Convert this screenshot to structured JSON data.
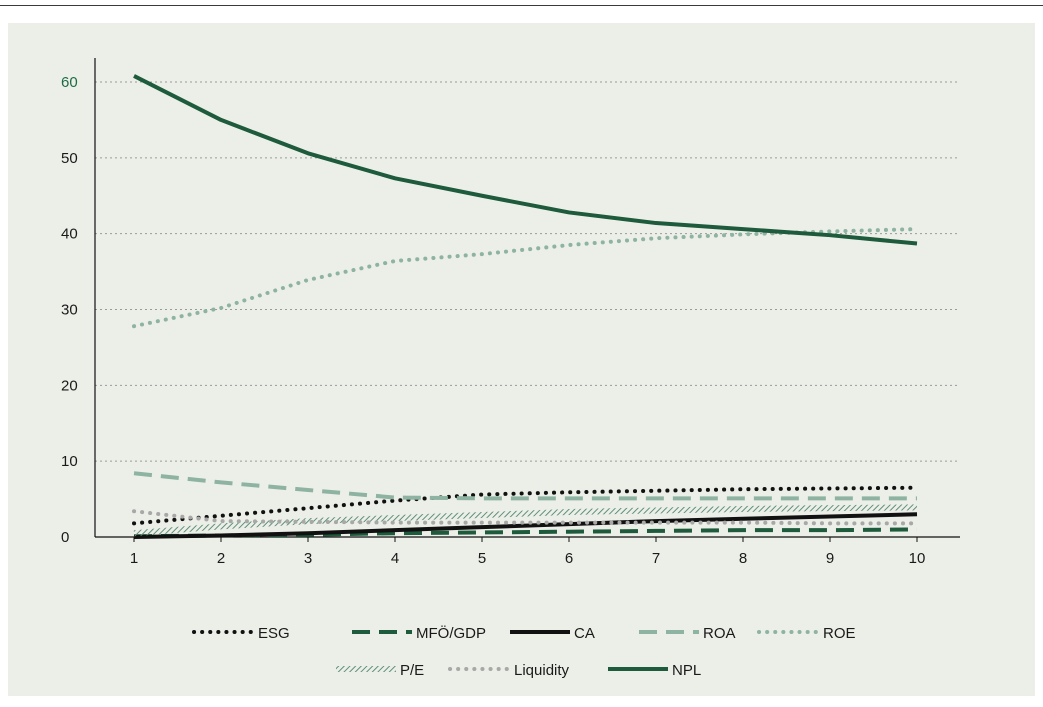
{
  "chart_data": {
    "type": "line",
    "x": [
      1,
      2,
      3,
      4,
      5,
      6,
      7,
      8,
      9,
      10
    ],
    "ylim": [
      0,
      60
    ],
    "xlim": [
      1,
      10
    ],
    "y_ticks": [
      "0",
      "10",
      "20",
      "30",
      "40",
      "50",
      "60"
    ],
    "x_ticks": [
      "1",
      "2",
      "3",
      "4",
      "5",
      "6",
      "7",
      "8",
      "9",
      "10"
    ],
    "grid": "horizontal dotted",
    "legend_placement": "bottom",
    "accent_colors": {
      "top_tick": "#1e6b45",
      "panel_bg": "#ecefe8"
    },
    "series": [
      {
        "name": "ESG",
        "color": "#111111",
        "style": "dotted",
        "values": [
          1.8,
          2.8,
          3.8,
          4.8,
          5.6,
          5.9,
          6.1,
          6.3,
          6.4,
          6.5
        ]
      },
      {
        "name": "MFÖ/GDP",
        "color": "#1e5a3c",
        "style": "dashed",
        "values": [
          0.1,
          0.2,
          0.3,
          0.5,
          0.6,
          0.7,
          0.8,
          0.9,
          0.9,
          1.0
        ]
      },
      {
        "name": "CA",
        "color": "#111111",
        "style": "solid",
        "values": [
          0.0,
          0.2,
          0.5,
          0.9,
          1.3,
          1.7,
          2.1,
          2.4,
          2.7,
          3.0
        ]
      },
      {
        "name": "ROA",
        "color": "#8fb3a2",
        "style": "dashed",
        "values": [
          8.4,
          7.2,
          6.2,
          5.2,
          5.1,
          5.1,
          5.1,
          5.1,
          5.1,
          5.1
        ]
      },
      {
        "name": "ROE",
        "color": "#8fb3a2",
        "style": "dotted",
        "values": [
          27.8,
          30.2,
          33.9,
          36.4,
          37.3,
          38.5,
          39.4,
          39.9,
          40.3,
          40.6
        ]
      },
      {
        "name": "P/E",
        "color": "#5f9079",
        "style": "hatched",
        "values": [
          0.5,
          1.4,
          2.1,
          2.5,
          2.9,
          3.3,
          3.5,
          3.7,
          3.8,
          3.9
        ]
      },
      {
        "name": "Liquidity",
        "color": "#a8a8a8",
        "style": "dotted",
        "values": [
          3.4,
          2.1,
          2.0,
          1.9,
          1.9,
          1.9,
          1.9,
          1.9,
          1.8,
          1.8
        ]
      },
      {
        "name": "NPL",
        "color": "#1e5a3c",
        "style": "solid",
        "values": [
          60.8,
          55.0,
          50.6,
          47.3,
          45.0,
          42.8,
          41.4,
          40.6,
          39.8,
          38.7
        ]
      }
    ]
  }
}
